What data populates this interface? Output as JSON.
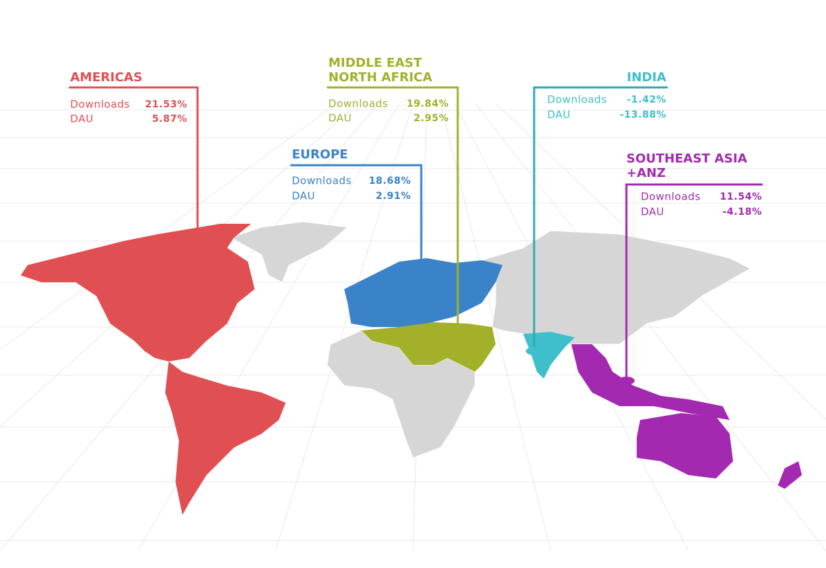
{
  "regions": [
    {
      "name": [
        "AMERICAS"
      ],
      "metrics": [
        {
          "label": "Downloads",
          "value": "21.53%"
        },
        {
          "label": "DAU",
          "value": "5.87%"
        }
      ]
    },
    {
      "name": [
        "MIDDLE EAST",
        "NORTH AFRICA"
      ],
      "metrics": [
        {
          "label": "Downloads",
          "value": "19.84%"
        },
        {
          "label": "DAU",
          "value": "2.95%"
        }
      ]
    },
    {
      "name": [
        "EUROPE"
      ],
      "metrics": [
        {
          "label": "Downloads",
          "value": "18.68%"
        },
        {
          "label": "DAU",
          "value": "2.91%"
        }
      ]
    },
    {
      "name": [
        "INDIA"
      ],
      "metrics": [
        {
          "label": "Downloads",
          "value": "-1.42%"
        },
        {
          "label": "DAU",
          "value": "-13.88%"
        }
      ]
    },
    {
      "name": [
        "SOUTHEAST ASIA",
        "+ANZ"
      ],
      "metrics": [
        {
          "label": "Downloads",
          "value": "11.54%"
        },
        {
          "label": "DAU",
          "value": "-4.18%"
        }
      ]
    }
  ]
}
